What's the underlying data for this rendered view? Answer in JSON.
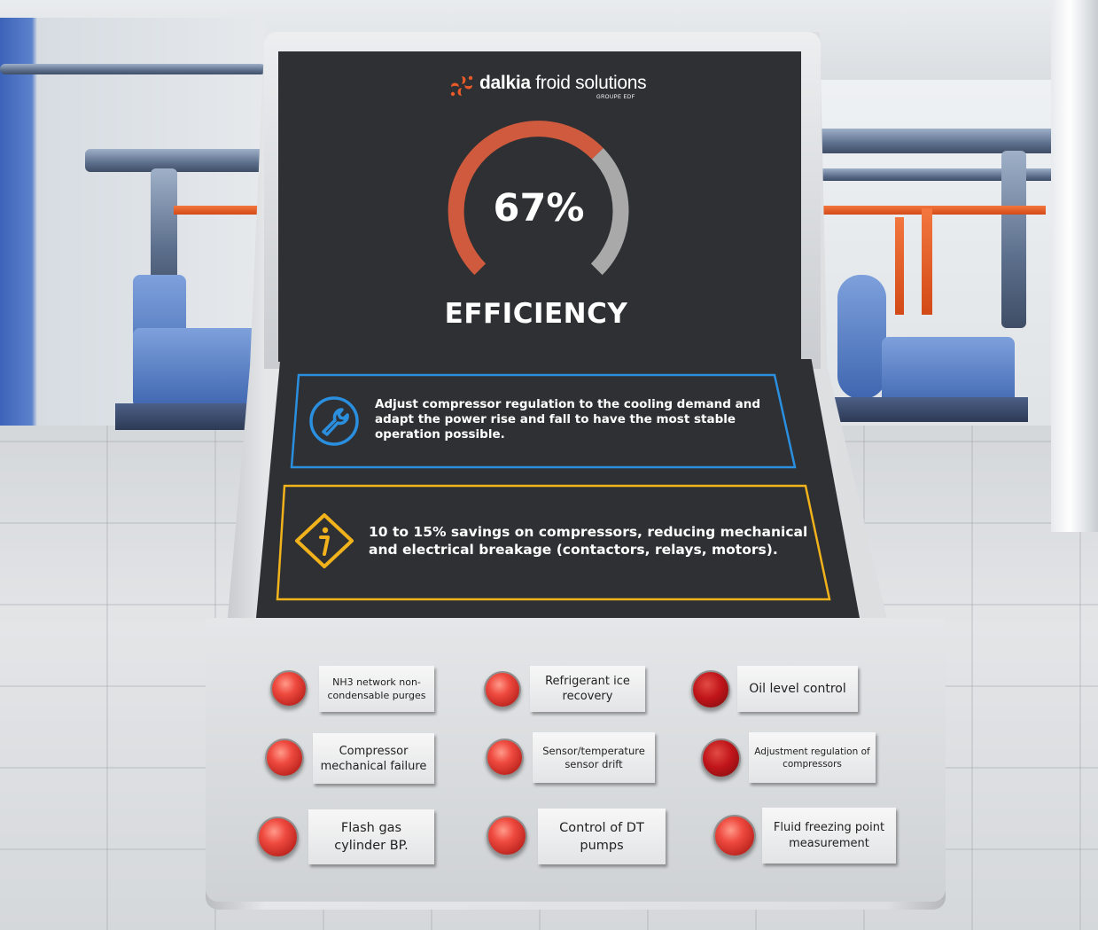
{
  "brand": {
    "name_bold": "dalkia",
    "name_rest": " froid solutions",
    "group": "GROUPE EDF",
    "accent": "#e85a28"
  },
  "gauge": {
    "value_text": "67%",
    "value": 0.67,
    "label": "EFFICIENCY",
    "fill_color": "#cf5a3e",
    "track_color": "#a9a9a9"
  },
  "info_blue": {
    "icon": "wrench-icon",
    "color": "#2b8fe0",
    "text": "Adjust compressor regulation to the cooling demand and adapt the power rise and fall to have the most stable operation possible."
  },
  "info_yellow": {
    "icon": "info-diamond-icon",
    "color": "#f2b21b",
    "text": "10 to 15% savings on compressors, reducing mechanical and electrical breakage (contactors, relays, motors)."
  },
  "buttons": [
    {
      "label": "NH3 network non-condensable purges",
      "state": "off"
    },
    {
      "label": "Refrigerant ice recovery",
      "state": "off"
    },
    {
      "label": "Oil level control",
      "state": "on"
    },
    {
      "label": "Compressor mechanical failure",
      "state": "off"
    },
    {
      "label": "Sensor/temperature sensor drift",
      "state": "off"
    },
    {
      "label": "Adjustment regulation of compressors",
      "state": "on"
    },
    {
      "label": "Flash gas cylinder BP.",
      "state": "off"
    },
    {
      "label": "Control of DT pumps",
      "state": "off"
    },
    {
      "label": "Fluid freezing point measurement",
      "state": "off"
    }
  ]
}
